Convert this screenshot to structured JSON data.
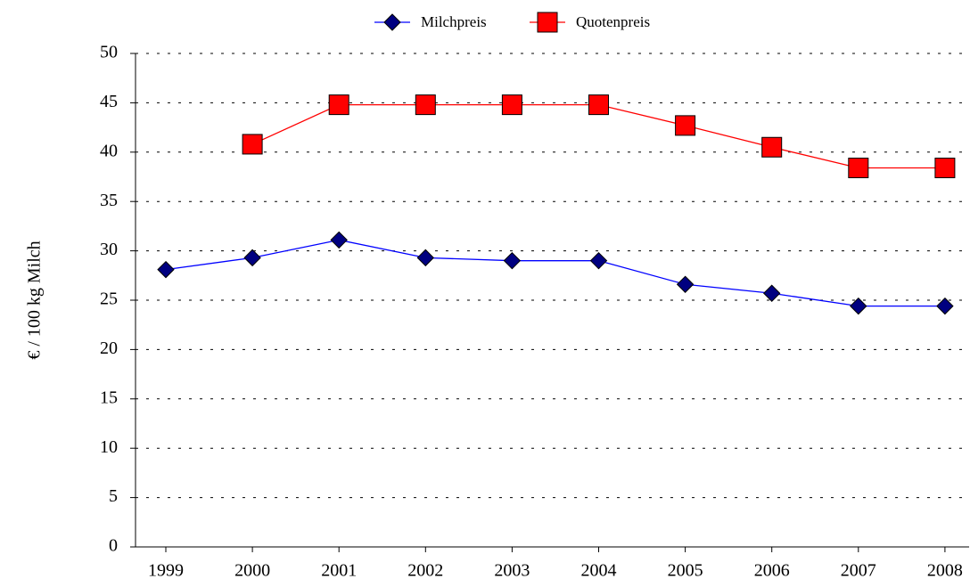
{
  "chart_data": {
    "type": "line",
    "y_label": "€ / 100 kg Milch",
    "categories": [
      "1999",
      "2000",
      "2001",
      "2002",
      "2003",
      "2004",
      "2005",
      "2006",
      "2007",
      "2008"
    ],
    "series": [
      {
        "name": "Milchpreis",
        "color": "#000080",
        "line_color": "#0000ff",
        "marker": "diamond",
        "values": [
          28.1,
          29.3,
          31.1,
          29.3,
          29.0,
          29.0,
          26.6,
          25.7,
          24.4,
          24.4
        ]
      },
      {
        "name": "Quotenpreis",
        "color": "#ff0000",
        "line_color": "#ff0000",
        "marker": "square",
        "values": [
          null,
          40.8,
          44.8,
          44.8,
          44.8,
          44.8,
          42.7,
          40.5,
          38.4,
          38.4
        ]
      }
    ],
    "ylim": [
      0,
      50
    ],
    "yticks": [
      0,
      5,
      10,
      15,
      20,
      25,
      30,
      35,
      40,
      45,
      50
    ],
    "grid": true,
    "legend": "top"
  }
}
